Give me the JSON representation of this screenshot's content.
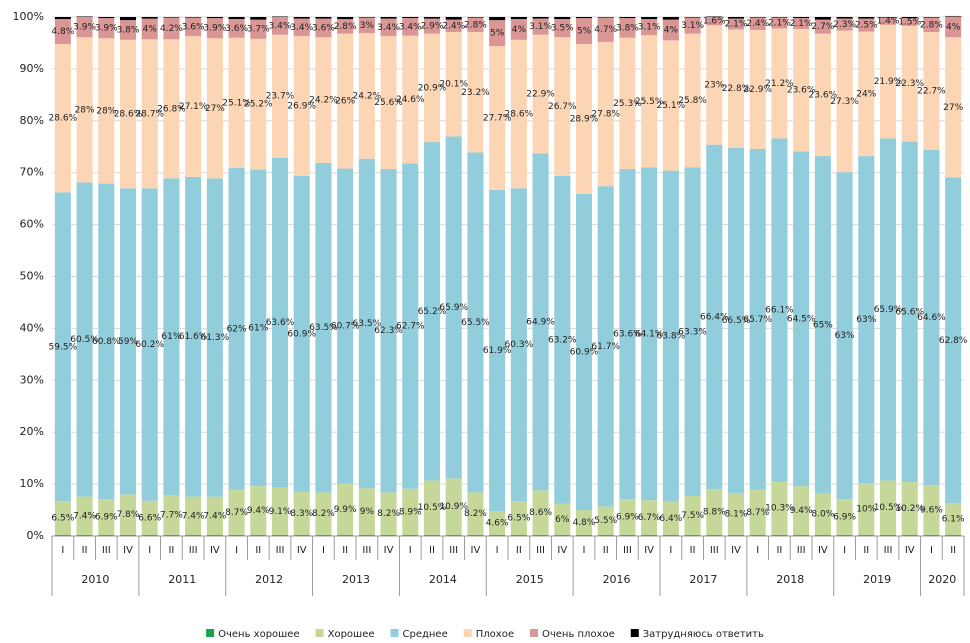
{
  "chart_data": {
    "type": "stacked_bar",
    "categories": [
      "I",
      "II",
      "III",
      "IV",
      "I",
      "II",
      "III",
      "IV",
      "I",
      "II",
      "III",
      "IV",
      "I",
      "II",
      "III",
      "IV",
      "I",
      "II",
      "III",
      "IV",
      "I",
      "II",
      "III",
      "IV",
      "I",
      "II",
      "III",
      "IV",
      "I",
      "II",
      "III",
      "IV",
      "I",
      "II",
      "III",
      "IV",
      "I",
      "II",
      "III",
      "IV",
      "I",
      "II"
    ],
    "category_groups": [
      "2010",
      "2010",
      "2010",
      "2010",
      "2011",
      "2011",
      "2011",
      "2011",
      "2012",
      "2012",
      "2012",
      "2012",
      "2013",
      "2013",
      "2013",
      "2013",
      "2014",
      "2014",
      "2014",
      "2014",
      "2015",
      "2015",
      "2015",
      "2015",
      "2016",
      "2016",
      "2016",
      "2016",
      "2017",
      "2017",
      "2017",
      "2017",
      "2018",
      "2018",
      "2018",
      "2018",
      "2019",
      "2019",
      "2019",
      "2019",
      "2020",
      "2020"
    ],
    "ylim": [
      0,
      100
    ],
    "yticks": [
      {
        "value": 0,
        "label": "0%"
      },
      {
        "value": 10,
        "label": "10%"
      },
      {
        "value": 20,
        "label": "20%"
      },
      {
        "value": 30,
        "label": "30%"
      },
      {
        "value": 40,
        "label": "40%"
      },
      {
        "value": 50,
        "label": "50%"
      },
      {
        "value": 60,
        "label": "60%"
      },
      {
        "value": 70,
        "label": "70%"
      },
      {
        "value": 80,
        "label": "80%"
      },
      {
        "value": 90,
        "label": "90%"
      },
      {
        "value": 100,
        "label": "100%"
      }
    ],
    "grid": true,
    "legend": "bottom",
    "series": [
      {
        "name": "Очень хорошее",
        "color": "#1aa34a",
        "values": [
          0.2,
          0.2,
          0.2,
          0.2,
          0.2,
          0.2,
          0.2,
          0.2,
          0.2,
          0.2,
          0.2,
          0.2,
          0.2,
          0.2,
          0.2,
          0.2,
          0.2,
          0.2,
          0.2,
          0.2,
          0.2,
          0.2,
          0.2,
          0.2,
          0.2,
          0.2,
          0.2,
          0.2,
          0.2,
          0.2,
          0.2,
          0.2,
          0.2,
          0.2,
          0.2,
          0.2,
          0.2,
          0.2,
          0.2,
          0.2,
          0.2,
          0.2
        ]
      },
      {
        "name": "Хорошее",
        "color": "#c5d89a",
        "values": [
          6.5,
          7.4,
          6.9,
          7.8,
          6.6,
          7.7,
          7.4,
          7.4,
          8.7,
          9.4,
          9.1,
          8.3,
          8.2,
          9.9,
          9,
          8.2,
          8.9,
          10.5,
          10.9,
          8.2,
          4.6,
          6.5,
          8.6,
          6,
          4.8,
          5.5,
          6.9,
          6.7,
          6.4,
          7.5,
          8.8,
          8.1,
          8.7,
          10.3,
          9.4,
          8.0,
          6.9,
          10,
          10.5,
          10.2,
          9.6,
          6.1
        ],
        "value_labels": [
          "6.5%",
          "7.4%",
          "6.9%",
          "7.8%",
          "6.6%",
          "7.7%",
          "7.4%",
          "7.4%",
          "8.7%",
          "9.4%",
          "9.1%",
          "8.3%",
          "8.2%",
          "9.9%",
          "9%",
          "8.2%",
          "8.9%",
          "10.5%",
          "10.9%",
          "8.2%",
          "4.6%",
          "6.5%",
          "8.6%",
          "6%",
          "4.8%",
          "5.5%",
          "6.9%",
          "6.7%",
          "6.4%",
          "7.5%",
          "8.8%",
          "8.1%",
          "8.7%",
          "10.3%",
          "9.4%",
          "8.0%",
          "6.9%",
          "10%",
          "10.5%",
          "10.2%",
          "9.6%",
          "6.1%"
        ]
      },
      {
        "name": "Среднее",
        "color": "#92cddc",
        "values": [
          59.5,
          60.5,
          60.8,
          59,
          60.2,
          61,
          61.6,
          61.3,
          62,
          61,
          63.6,
          60.9,
          63.5,
          60.7,
          63.5,
          62.3,
          62.7,
          65.2,
          65.9,
          65.5,
          61.9,
          60.3,
          64.9,
          63.2,
          60.9,
          61.7,
          63.6,
          64.1,
          63.8,
          63.3,
          66.4,
          66.5,
          65.7,
          66.1,
          64.5,
          65,
          63,
          63,
          65.9,
          65.6,
          64.6,
          62.8
        ],
        "value_labels": [
          "59.5%",
          "60.5%",
          "60.8%",
          "59%",
          "60.2%",
          "61%",
          "61.6%",
          "61.3%",
          "62%",
          "61%",
          "63.6%",
          "60.9%",
          "63.5%",
          "60.7%",
          "63.5%",
          "62.3%",
          "62.7%",
          "65.2%",
          "65.9%",
          "65.5%",
          "61.9%",
          "60.3%",
          "64.9%",
          "63.2%",
          "60.9%",
          "61.7%",
          "63.6%",
          "64.1%",
          "63.8%",
          "63.3%",
          "66.4%",
          "66.5%",
          "65.7%",
          "66.1%",
          "64.5%",
          "65%",
          "63%",
          "63%",
          "65.9%",
          "65.6%",
          "64.6%",
          "62.8%"
        ]
      },
      {
        "name": "Плохое",
        "color": "#fcd5b4",
        "values": [
          28.6,
          28,
          28,
          28.6,
          28.7,
          26.8,
          27.1,
          27,
          25.1,
          25.2,
          23.7,
          26.9,
          24.2,
          26,
          24.2,
          25.6,
          24.6,
          20.9,
          20.1,
          23.2,
          27.7,
          28.6,
          22.9,
          26.7,
          28.9,
          27.8,
          25.3,
          25.5,
          25.1,
          25.8,
          23,
          22.8,
          22.9,
          21.2,
          23.6,
          23.6,
          27.3,
          24,
          21.9,
          22.3,
          22.7,
          27
        ],
        "value_labels": [
          "28.6%",
          "28%",
          "28%",
          "28.6%",
          "28.7%",
          "26.8%",
          "27.1%",
          "27%",
          "25.1%",
          "25.2%",
          "23.7%",
          "26.9%",
          "24.2%",
          "26%",
          "24.2%",
          "25.6%",
          "24.6%",
          "20.9%",
          "20.1%",
          "23.2%",
          "27.7%",
          "28.6%",
          "22.9%",
          "26.7%",
          "28.9%",
          "27.8%",
          "25.3%",
          "25.5%",
          "25.1%",
          "25.8%",
          "23%",
          "22.8%",
          "22.9%",
          "21.2%",
          "23.6%",
          "23.6%",
          "27.3%",
          "24%",
          "21.9%",
          "22.3%",
          "22.7%",
          "27%"
        ]
      },
      {
        "name": "Очень плохое",
        "color": "#d99694",
        "values": [
          4.8,
          3.9,
          3.9,
          3.8,
          4,
          4.2,
          3.6,
          3.9,
          3.6,
          3.7,
          3.4,
          3.4,
          3.6,
          2.8,
          3,
          3.4,
          3.4,
          2.9,
          2.4,
          2.8,
          5,
          4,
          3.1,
          3.5,
          5,
          4.7,
          3.8,
          3.1,
          4,
          3.1,
          1.6,
          2.1,
          2.4,
          2.1,
          2.1,
          2.7,
          2.3,
          2.5,
          1.4,
          1.5,
          2.8,
          4
        ],
        "value_labels": [
          "4.8%",
          "3.9%",
          "3.9%",
          "3.8%",
          "4%",
          "4.2%",
          "3.6%",
          "3.9%",
          "3.6%",
          "3.7%",
          "3.4%",
          "3.4%",
          "3.6%",
          "2.8%",
          "3%",
          "3.4%",
          "3.4%",
          "2.9%",
          "2.4%",
          "2.8%",
          "5%",
          "4%",
          "3.1%",
          "3.5%",
          "5%",
          "4.7%",
          "3.8%",
          "3.1%",
          "4%",
          "3.1%",
          "1.6%",
          "2.1%",
          "2.4%",
          "2.1%",
          "2.1%",
          "2.7%",
          "2.3%",
          "2.5%",
          "1.4%",
          "1.5%",
          "2.8%",
          "4%"
        ]
      },
      {
        "name": "Затрудняюсь ответить",
        "color": "#000000",
        "values": [
          0.4,
          0.1,
          0.2,
          0.6,
          0.3,
          0.1,
          0.1,
          0.2,
          0.4,
          0.5,
          0.1,
          0.3,
          0.3,
          0.4,
          0.1,
          0.3,
          0.2,
          0.3,
          0.5,
          0.1,
          0.6,
          0.4,
          0.3,
          0.4,
          0.2,
          0.1,
          0.2,
          0.4,
          0.5,
          0.1,
          0.1,
          0.3,
          0.1,
          0.1,
          0.2,
          0.5,
          0.3,
          0.3,
          0.1,
          0.2,
          0.1,
          0.1
        ]
      }
    ]
  }
}
